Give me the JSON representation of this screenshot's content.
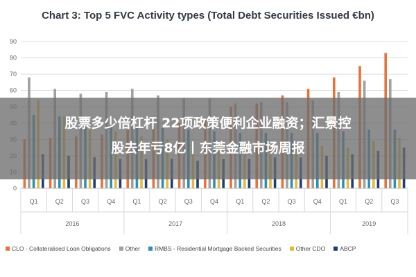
{
  "chart_data": {
    "type": "bar",
    "title": "Chart 3: Top 5 FVC Activity types (Total Debt Securities Issued €bn)",
    "ylim": [
      0,
      90
    ],
    "yticks": [
      0,
      10,
      20,
      30,
      40,
      50,
      60,
      70,
      80,
      90
    ],
    "grid": true,
    "legend_position": "bottom",
    "categories": [
      "Q1",
      "Q2",
      "Q3",
      "Q4",
      "Q1",
      "Q2",
      "Q3",
      "Q4",
      "Q1",
      "Q2",
      "Q3",
      "Q4",
      "Q1",
      "Q2",
      "Q3"
    ],
    "years": [
      {
        "label": "2016",
        "span": 4
      },
      {
        "label": "2017",
        "span": 4
      },
      {
        "label": "2018",
        "span": 4
      },
      {
        "label": "2019",
        "span": 3
      }
    ],
    "series": [
      {
        "name": "CLO - Collateralised Loan Obligations",
        "color": "#e8733a",
        "values": [
          30,
          31,
          32,
          33,
          36,
          38,
          40,
          42,
          50,
          52,
          57,
          61,
          68,
          75,
          83
        ]
      },
      {
        "name": "Other",
        "color": "#a0a0a0",
        "values": [
          68,
          61,
          58,
          59,
          61,
          57,
          55,
          55,
          52,
          53,
          53,
          54,
          59,
          66,
          67
        ]
      },
      {
        "name": "RMBS - Residential Mortgage Backed Securities",
        "color": "#2f8fb0",
        "values": [
          45,
          44,
          40,
          39,
          38,
          37,
          36,
          35,
          34,
          34,
          34,
          34,
          35,
          36,
          36
        ]
      },
      {
        "name": "Other CDO",
        "color": "#e8b83a",
        "values": [
          54,
          44,
          36,
          35,
          32,
          30,
          29,
          28,
          28,
          27,
          27,
          26,
          25,
          29,
          31
        ]
      },
      {
        "name": "ABCP",
        "color": "#1e3c78",
        "values": [
          21,
          20,
          19,
          18,
          18,
          18,
          17,
          18,
          18,
          19,
          19,
          20,
          21,
          23,
          25
        ]
      }
    ]
  },
  "overlay": {
    "line1": "股票多少倍杠杆 22项政策便利企业融资；汇景控",
    "line2": "股去年亏8亿丨东莞金融市场周报"
  }
}
